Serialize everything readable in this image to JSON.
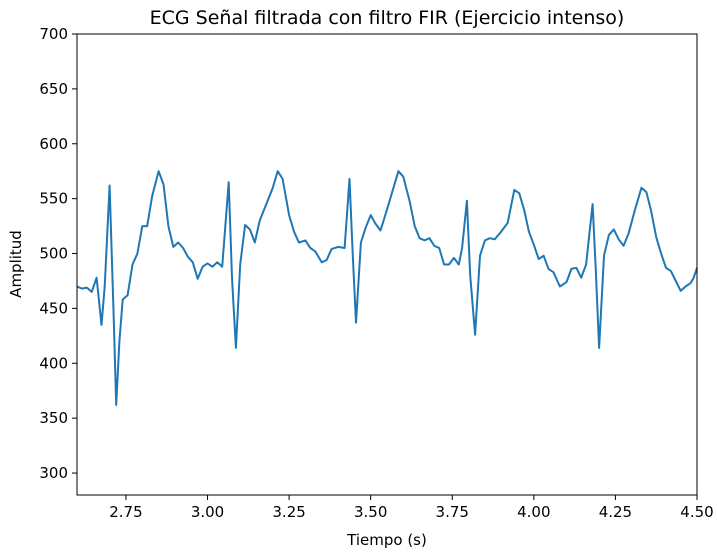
{
  "chart_data": {
    "type": "line",
    "title": "ECG Señal filtrada con filtro FIR (Ejercicio intenso)",
    "xlabel": "Tiempo (s)",
    "ylabel": "Amplitud",
    "xlim": [
      2.6,
      4.5
    ],
    "ylim": [
      280,
      700
    ],
    "xticks": [
      2.75,
      3.0,
      3.25,
      3.5,
      3.75,
      4.0,
      4.25,
      4.5
    ],
    "xtick_labels": [
      "2.75",
      "3.00",
      "3.25",
      "3.50",
      "3.75",
      "4.00",
      "4.25",
      "4.50"
    ],
    "yticks": [
      300,
      350,
      400,
      450,
      500,
      550,
      600,
      650,
      700
    ],
    "ytick_labels": [
      "300",
      "350",
      "400",
      "450",
      "500",
      "550",
      "600",
      "650",
      "700"
    ],
    "grid": false,
    "line_color": "#1f77b4",
    "series": [
      {
        "points": [
          [
            2.6,
            470
          ],
          [
            2.615,
            468
          ],
          [
            2.63,
            469
          ],
          [
            2.645,
            465
          ],
          [
            2.66,
            478
          ],
          [
            2.675,
            435
          ],
          [
            2.685,
            470
          ],
          [
            2.7,
            562
          ],
          [
            2.712,
            448
          ],
          [
            2.72,
            362
          ],
          [
            2.73,
            420
          ],
          [
            2.74,
            458
          ],
          [
            2.755,
            462
          ],
          [
            2.77,
            490
          ],
          [
            2.785,
            500
          ],
          [
            2.8,
            525
          ],
          [
            2.815,
            525
          ],
          [
            2.83,
            552
          ],
          [
            2.85,
            575
          ],
          [
            2.865,
            563
          ],
          [
            2.88,
            525
          ],
          [
            2.895,
            506
          ],
          [
            2.91,
            510
          ],
          [
            2.925,
            505
          ],
          [
            2.94,
            497
          ],
          [
            2.955,
            492
          ],
          [
            2.97,
            477
          ],
          [
            2.985,
            488
          ],
          [
            3.0,
            491
          ],
          [
            3.015,
            488
          ],
          [
            3.03,
            492
          ],
          [
            3.045,
            488
          ],
          [
            3.065,
            565
          ],
          [
            3.075,
            478
          ],
          [
            3.087,
            414
          ],
          [
            3.1,
            490
          ],
          [
            3.115,
            526
          ],
          [
            3.13,
            522
          ],
          [
            3.145,
            510
          ],
          [
            3.16,
            530
          ],
          [
            3.18,
            545
          ],
          [
            3.2,
            560
          ],
          [
            3.215,
            575
          ],
          [
            3.23,
            568
          ],
          [
            3.25,
            535
          ],
          [
            3.265,
            520
          ],
          [
            3.28,
            510
          ],
          [
            3.3,
            512
          ],
          [
            3.315,
            505
          ],
          [
            3.33,
            502
          ],
          [
            3.35,
            492
          ],
          [
            3.365,
            494
          ],
          [
            3.38,
            504
          ],
          [
            3.4,
            506
          ],
          [
            3.42,
            505
          ],
          [
            3.435,
            568
          ],
          [
            3.445,
            500
          ],
          [
            3.455,
            437
          ],
          [
            3.47,
            510
          ],
          [
            3.485,
            524
          ],
          [
            3.5,
            535
          ],
          [
            3.515,
            527
          ],
          [
            3.53,
            521
          ],
          [
            3.55,
            540
          ],
          [
            3.57,
            560
          ],
          [
            3.585,
            575
          ],
          [
            3.6,
            570
          ],
          [
            3.62,
            547
          ],
          [
            3.635,
            525
          ],
          [
            3.65,
            514
          ],
          [
            3.665,
            512
          ],
          [
            3.68,
            514
          ],
          [
            3.695,
            507
          ],
          [
            3.71,
            505
          ],
          [
            3.725,
            490
          ],
          [
            3.74,
            490
          ],
          [
            3.755,
            496
          ],
          [
            3.77,
            490
          ],
          [
            3.78,
            505
          ],
          [
            3.795,
            548
          ],
          [
            3.805,
            480
          ],
          [
            3.82,
            426
          ],
          [
            3.835,
            498
          ],
          [
            3.85,
            512
          ],
          [
            3.865,
            514
          ],
          [
            3.88,
            513
          ],
          [
            3.9,
            520
          ],
          [
            3.92,
            528
          ],
          [
            3.94,
            558
          ],
          [
            3.955,
            555
          ],
          [
            3.97,
            540
          ],
          [
            3.985,
            520
          ],
          [
            4.0,
            508
          ],
          [
            4.015,
            495
          ],
          [
            4.03,
            498
          ],
          [
            4.045,
            486
          ],
          [
            4.06,
            483
          ],
          [
            4.08,
            470
          ],
          [
            4.1,
            474
          ],
          [
            4.115,
            486
          ],
          [
            4.13,
            487
          ],
          [
            4.145,
            478
          ],
          [
            4.16,
            490
          ],
          [
            4.18,
            545
          ],
          [
            4.19,
            485
          ],
          [
            4.2,
            414
          ],
          [
            4.215,
            498
          ],
          [
            4.23,
            517
          ],
          [
            4.245,
            522
          ],
          [
            4.26,
            513
          ],
          [
            4.275,
            507
          ],
          [
            4.29,
            518
          ],
          [
            4.31,
            540
          ],
          [
            4.33,
            560
          ],
          [
            4.345,
            556
          ],
          [
            4.36,
            538
          ],
          [
            4.375,
            515
          ],
          [
            4.39,
            500
          ],
          [
            4.405,
            487
          ],
          [
            4.42,
            484
          ],
          [
            4.435,
            475
          ],
          [
            4.45,
            466
          ],
          [
            4.465,
            470
          ],
          [
            4.48,
            473
          ],
          [
            4.49,
            478
          ],
          [
            4.5,
            487
          ]
        ]
      }
    ]
  }
}
